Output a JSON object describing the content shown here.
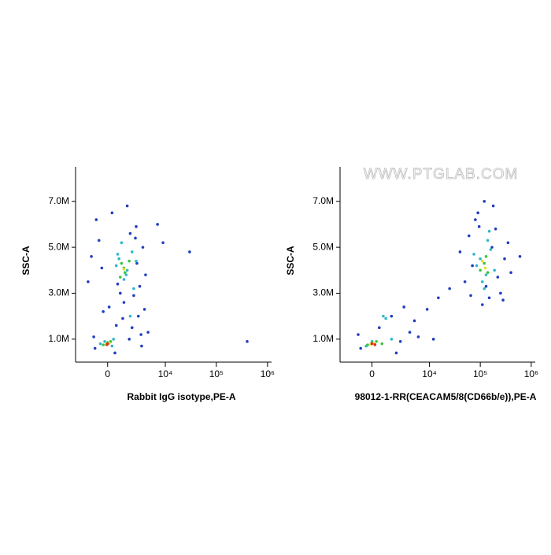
{
  "chart_data": [
    {
      "type": "scatter",
      "x_label": "Rabbit IgG isotype,PE-A",
      "y_label": "SSC-A",
      "xscale": "biexponential",
      "xlim": [
        -3000,
        1200000
      ],
      "ylim": [
        0,
        8500000
      ],
      "xticks": [
        0,
        {
          "value": 10000,
          "label": "10⁴"
        },
        {
          "value": 100000,
          "label": "10⁵"
        },
        {
          "value": 1000000,
          "label": "10⁶"
        }
      ],
      "yticks": [
        {
          "value": 1000000,
          "label": "1.0M"
        },
        {
          "value": 3000000,
          "label": "3.0M"
        },
        {
          "value": 5000000,
          "label": "5.0M"
        },
        {
          "value": 7000000,
          "label": "7.0M"
        }
      ],
      "series": [
        {
          "color": "#1f3fbf",
          "x": [
            -800,
            300,
            2500,
            3500,
            -1500,
            4000,
            1200,
            -300,
            2800,
            600,
            3200,
            500,
            -1000,
            1800,
            900,
            2200,
            7000,
            9000,
            30000,
            400000,
            -1200,
            2600,
            3000,
            -600,
            1500,
            2000,
            100,
            3800,
            -900,
            1700,
            4500,
            2400,
            700,
            -400,
            1100,
            3300
          ],
          "y": [
            6200000,
            6500000,
            5900000,
            5000000,
            3500000,
            3800000,
            2600000,
            2200000,
            2000000,
            1600000,
            1200000,
            400000,
            1100000,
            5600000,
            3000000,
            2900000,
            6000000,
            5200000,
            4800000,
            900000,
            4600000,
            4300000,
            3300000,
            5300000,
            6800000,
            1500000,
            2400000,
            2300000,
            600000,
            1000000,
            1300000,
            5400000,
            3400000,
            4100000,
            1900000,
            700000
          ]
        },
        {
          "color": "#2fb8c8",
          "x": [
            800,
            1500,
            2000,
            1200,
            600,
            -200,
            300,
            1800,
            1000,
            2200,
            -500,
            400,
            1400,
            2500,
            700
          ],
          "y": [
            4500000,
            4000000,
            4800000,
            3600000,
            4200000,
            900000,
            700000,
            2000000,
            5200000,
            3200000,
            800000,
            1000000,
            3800000,
            4400000,
            4700000
          ]
        },
        {
          "color": "#3cc43c",
          "x": [
            1000,
            1300,
            1700,
            900,
            0,
            -300,
            200,
            1200
          ],
          "y": [
            4300000,
            3900000,
            4400000,
            3700000,
            850000,
            750000,
            900000,
            4100000
          ]
        },
        {
          "color": "#e8e020",
          "x": [
            1200,
            100,
            -100
          ],
          "y": [
            4050000,
            820000,
            780000
          ]
        },
        {
          "color": "#e03020",
          "x": [
            0,
            -50
          ],
          "y": [
            800000,
            760000
          ]
        }
      ]
    },
    {
      "type": "scatter",
      "x_label": "98012-1-RR(CEACAM5/8(CD66b/e)),PE-A",
      "y_label": "SSC-A",
      "annotation": "WWW.PTGLAB.COM",
      "xscale": "biexponential",
      "xlim": [
        -3000,
        1200000
      ],
      "ylim": [
        0,
        8500000
      ],
      "xticks": [
        0,
        {
          "value": 10000,
          "label": "10⁴"
        },
        {
          "value": 100000,
          "label": "10⁵"
        },
        {
          "value": 1000000,
          "label": "10⁶"
        }
      ],
      "yticks": [
        {
          "value": 1000000,
          "label": "1.0M"
        },
        {
          "value": 3000000,
          "label": "3.0M"
        },
        {
          "value": 5000000,
          "label": "5.0M"
        },
        {
          "value": 7000000,
          "label": "7.0M"
        }
      ],
      "series": [
        {
          "color": "#1f3fbf",
          "x": [
            60000,
            80000,
            200000,
            250000,
            50000,
            300000,
            150000,
            90000,
            180000,
            70000,
            220000,
            110000,
            40000,
            350000,
            130000,
            95000,
            400000,
            170000,
            65000,
            280000,
            1500,
            3000,
            5000,
            9000,
            15000,
            25000,
            2000,
            -1000,
            500,
            4000,
            -800,
            2500,
            6000,
            12000,
            600000,
            120000
          ],
          "y": [
            5500000,
            6200000,
            5800000,
            3000000,
            3500000,
            4500000,
            2800000,
            6500000,
            6800000,
            4200000,
            3700000,
            2500000,
            4800000,
            5200000,
            3300000,
            5900000,
            3900000,
            5000000,
            2900000,
            2700000,
            2000000,
            2400000,
            1800000,
            2300000,
            2800000,
            3200000,
            400000,
            1200000,
            1500000,
            1300000,
            600000,
            900000,
            1100000,
            1000000,
            4600000,
            7000000
          ]
        },
        {
          "color": "#2fb8c8",
          "x": [
            100000,
            130000,
            160000,
            85000,
            140000,
            110000,
            190000,
            75000,
            120000,
            0,
            800,
            -400,
            1500,
            1000,
            150000
          ],
          "y": [
            4500000,
            3800000,
            4900000,
            4200000,
            5300000,
            3500000,
            4000000,
            4700000,
            3200000,
            900000,
            2000000,
            700000,
            1000000,
            1900000,
            5700000
          ]
        },
        {
          "color": "#3cc43c",
          "x": [
            120000,
            140000,
            100000,
            130000,
            0,
            -300,
            300,
            700
          ],
          "y": [
            4300000,
            3900000,
            4000000,
            4600000,
            850000,
            750000,
            900000,
            800000
          ]
        },
        {
          "color": "#e8e020",
          "x": [
            125000,
            110000,
            100,
            -100
          ],
          "y": [
            4100000,
            4400000,
            820000,
            780000
          ]
        },
        {
          "color": "#e03020",
          "x": [
            0,
            200
          ],
          "y": [
            800000,
            760000
          ]
        }
      ]
    }
  ]
}
